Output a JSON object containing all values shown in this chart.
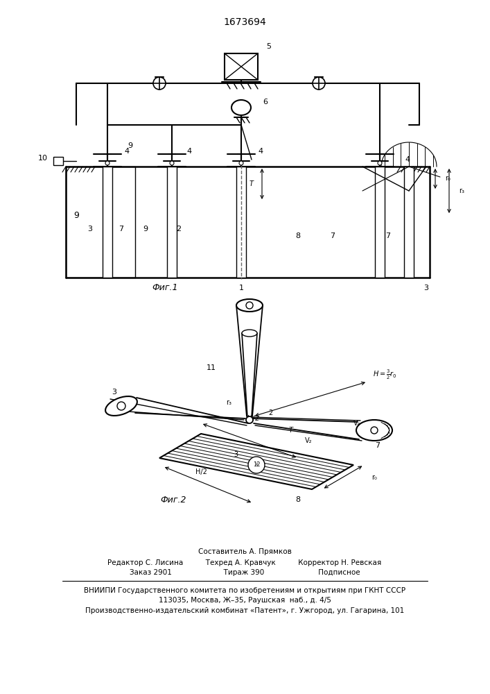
{
  "title": "1673694",
  "bg_color": "#ffffff",
  "line_color": "#000000",
  "footer_lines": [
    "Составитель А. Прямков",
    "Редактор С. Лисина          Техред А. Кравчук          Корректор Н. Ревская",
    "Заказ 2901                       Тираж 390                        Подписное",
    "ВНИИПИ Государственного комитета по изобретениям и открытиям при ГКНТ СССР",
    "113035, Москва, Ж–35, Раушская  наб., д. 4/5",
    "Производственно-издательский комбинат «Патент», г. Ужгород, ул. Гагарина, 101"
  ]
}
